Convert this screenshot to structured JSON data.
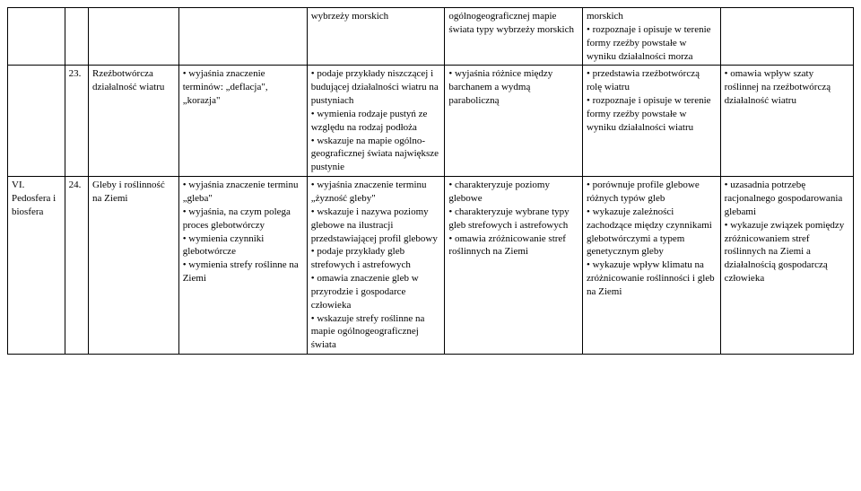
{
  "rows": [
    {
      "c1": "",
      "c2": "",
      "c3": "",
      "c4": "",
      "c5": "wybrzeży morskich",
      "c6": "ogólnogeograficznej mapie świata typy wybrzeży morskich",
      "c7": "morskich\n• rozpoznaje i opisuje w terenie formy rzeźby powstałe w wyniku działalności morza",
      "c8": ""
    },
    {
      "c1": "",
      "c2": "23.",
      "c3": "Rzeźbotwórcza działalność wiatru",
      "c4": "• wyjaśnia znaczenie terminów: „deflacja\", „korazja\"",
      "c5": "• podaje przykłady niszczącej i budującej działalności wiatru na pustyniach\n• wymienia rodzaje pustyń ze względu na rodzaj podłoża\n• wskazuje na mapie ogólno-geograficznej świata największe pustynie",
      "c6": "• wyjaśnia różnice między barchanem a wydmą paraboliczną",
      "c7": "• przedstawia rzeźbotwórczą rolę wiatru\n• rozpoznaje i opisuje w terenie formy rzeźby powstałe w wyniku działalności wiatru",
      "c8": "• omawia wpływ szaty roślinnej na rzeźbotwórczą działalność wiatru"
    },
    {
      "c1": "VI. Pedosfera i biosfera",
      "c2": "24.",
      "c3": "Gleby i roślinność na Ziemi",
      "c4": "• wyjaśnia znaczenie terminu „gleba\"\n• wyjaśnia, na czym polega proces glebotwórczy\n• wymienia czynniki glebotwórcze\n• wymienia strefy roślinne na Ziemi",
      "c5": "• wyjaśnia znaczenie terminu „żyzność gleby\"\n• wskazuje i nazywa poziomy glebowe na ilustracji przedstawiającej profil glebowy\n• podaje przykłady gleb strefowych i astrefowych\n• omawia znaczenie gleb w przyrodzie i gospodarce człowieka\n• wskazuje strefy roślinne na mapie ogólnogeograficznej świata",
      "c6": "• charakteryzuje poziomy glebowe\n• charakteryzuje wybrane typy gleb strefowych i astrefowych\n• omawia zróżnicowanie stref roślinnych na Ziemi",
      "c7": "• porównuje profile glebowe różnych typów gleb\n• wykazuje zależności zachodzące między czynnikami glebotwórczymi a typem genetycznym gleby\n• wykazuje wpływ klimatu na zróżnicowanie roślinności i gleb na Ziemi",
      "c8": "• uzasadnia potrzebę racjonalnego gospodarowania glebami\n• wykazuje związek pomiędzy zróżnicowaniem stref roślinnych na Ziemi a działalnością gospodarczą człowieka"
    }
  ]
}
